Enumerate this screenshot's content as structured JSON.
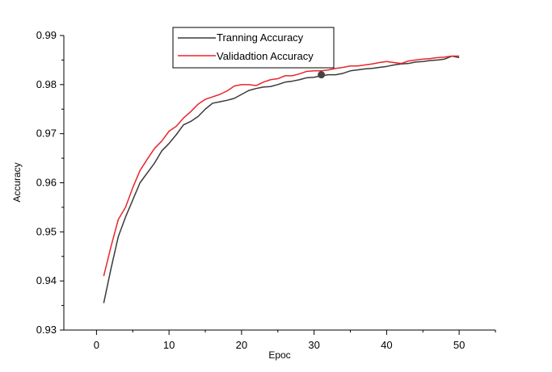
{
  "chart_data": {
    "type": "line",
    "title": "",
    "xlabel": "Epoc",
    "ylabel": "Accuracy",
    "xlim": [
      -4.5,
      55
    ],
    "ylim": [
      0.93,
      0.99
    ],
    "x_ticks": [
      0,
      10,
      20,
      30,
      40,
      50
    ],
    "x_tick_labels": [
      "0",
      "10",
      "20",
      "30",
      "40",
      "50"
    ],
    "y_ticks": [
      0.93,
      0.94,
      0.95,
      0.96,
      0.97,
      0.98,
      0.99
    ],
    "y_tick_labels": [
      "0.93",
      "0.94",
      "0.95",
      "0.96",
      "0.97",
      "0.98",
      "0.99"
    ],
    "grid": false,
    "legend_position": "top-center",
    "x": [
      1,
      2,
      3,
      4,
      5,
      6,
      7,
      8,
      9,
      10,
      11,
      12,
      13,
      14,
      15,
      16,
      17,
      18,
      19,
      20,
      21,
      22,
      23,
      24,
      25,
      26,
      27,
      28,
      29,
      30,
      31,
      32,
      33,
      34,
      35,
      36,
      37,
      38,
      39,
      40,
      41,
      42,
      43,
      44,
      45,
      46,
      47,
      48,
      49,
      50
    ],
    "series": [
      {
        "name": "Tranning Accuracy",
        "color": "#3a3a3a",
        "values": [
          0.9355,
          0.9425,
          0.949,
          0.953,
          0.9565,
          0.96,
          0.962,
          0.964,
          0.9665,
          0.968,
          0.9698,
          0.9718,
          0.9725,
          0.9735,
          0.975,
          0.9762,
          0.9765,
          0.9768,
          0.9772,
          0.978,
          0.9788,
          0.9792,
          0.9795,
          0.9796,
          0.98,
          0.9805,
          0.9807,
          0.981,
          0.9814,
          0.9815,
          0.9818,
          0.982,
          0.982,
          0.9823,
          0.9828,
          0.983,
          0.9832,
          0.9833,
          0.9835,
          0.9837,
          0.984,
          0.9842,
          0.9843,
          0.9846,
          0.9847,
          0.9849,
          0.985,
          0.9852,
          0.9858,
          0.9855
        ]
      },
      {
        "name": "Validadtion Accuracy",
        "color": "#e8262c",
        "values": [
          0.941,
          0.947,
          0.9525,
          0.955,
          0.959,
          0.9625,
          0.9648,
          0.967,
          0.9685,
          0.9705,
          0.9715,
          0.9732,
          0.9745,
          0.976,
          0.977,
          0.9775,
          0.978,
          0.9787,
          0.9797,
          0.98,
          0.98,
          0.9798,
          0.9805,
          0.981,
          0.9812,
          0.9818,
          0.9818,
          0.9822,
          0.9827,
          0.9828,
          0.9828,
          0.983,
          0.9833,
          0.9835,
          0.9838,
          0.9838,
          0.984,
          0.9842,
          0.9845,
          0.9847,
          0.9845,
          0.9843,
          0.9848,
          0.985,
          0.9852,
          0.9853,
          0.9855,
          0.9856,
          0.9858,
          0.9858
        ]
      }
    ],
    "marker": {
      "x": 31,
      "y": 0.982,
      "color": "#444444"
    }
  }
}
